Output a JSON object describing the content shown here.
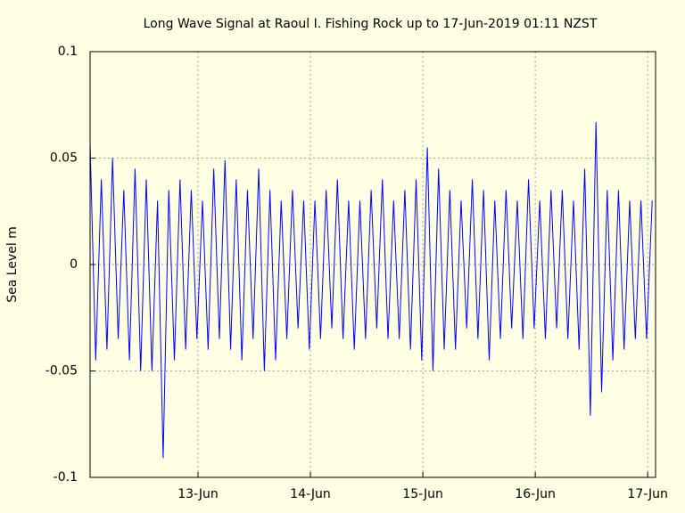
{
  "chart_data": {
    "type": "line",
    "title": "Long Wave Signal at Raoul I. Fishing Rock up to 17-Jun-2019 01:11 NZST",
    "ylabel": "Sea Level m",
    "xlim": [
      12.04,
      17.07
    ],
    "ylim": [
      -0.1,
      0.1
    ],
    "xticks": [
      {
        "value": 13,
        "label": "13-Jun"
      },
      {
        "value": 14,
        "label": "14-Jun"
      },
      {
        "value": 15,
        "label": "15-Jun"
      },
      {
        "value": 16,
        "label": "16-Jun"
      },
      {
        "value": 17,
        "label": "17-Jun"
      }
    ],
    "yticks": [
      -0.1,
      -0.05,
      0,
      0.05,
      0.1
    ],
    "grid": true,
    "series": [
      {
        "color": "#0000ff",
        "x": [
          12.04,
          12.09,
          12.14,
          12.19,
          12.24,
          12.29,
          12.34,
          12.39,
          12.44,
          12.49,
          12.54,
          12.59,
          12.64,
          12.69,
          12.74,
          12.79,
          12.84,
          12.89,
          12.94,
          12.99,
          13.04,
          13.09,
          13.14,
          13.19,
          13.24,
          13.29,
          13.34,
          13.39,
          13.44,
          13.49,
          13.54,
          13.59,
          13.64,
          13.69,
          13.74,
          13.79,
          13.84,
          13.89,
          13.94,
          13.99,
          14.04,
          14.09,
          14.14,
          14.19,
          14.24,
          14.29,
          14.34,
          14.39,
          14.44,
          14.49,
          14.54,
          14.59,
          14.64,
          14.69,
          14.74,
          14.79,
          14.84,
          14.89,
          14.94,
          14.99,
          15.04,
          15.09,
          15.14,
          15.19,
          15.24,
          15.29,
          15.34,
          15.39,
          15.44,
          15.49,
          15.54,
          15.59,
          15.64,
          15.69,
          15.74,
          15.79,
          15.84,
          15.89,
          15.94,
          15.99,
          16.04,
          16.09,
          16.14,
          16.19,
          16.24,
          16.29,
          16.34,
          16.39,
          16.44,
          16.49,
          16.54,
          16.59,
          16.64,
          16.69,
          16.74,
          16.79,
          16.84,
          16.89,
          16.94,
          16.99,
          17.04
        ],
        "values": [
          0.057,
          -0.045,
          0.04,
          -0.04,
          0.05,
          -0.035,
          0.035,
          -0.045,
          0.045,
          -0.05,
          0.04,
          -0.05,
          0.03,
          -0.091,
          0.035,
          -0.045,
          0.04,
          -0.04,
          0.035,
          -0.035,
          0.03,
          -0.04,
          0.045,
          -0.035,
          0.049,
          -0.04,
          0.04,
          -0.045,
          0.035,
          -0.035,
          0.045,
          -0.05,
          0.035,
          -0.045,
          0.03,
          -0.035,
          0.035,
          -0.03,
          0.03,
          -0.04,
          0.03,
          -0.035,
          0.035,
          -0.03,
          0.04,
          -0.035,
          0.03,
          -0.04,
          0.03,
          -0.035,
          0.035,
          -0.03,
          0.04,
          -0.035,
          0.03,
          -0.035,
          0.035,
          -0.04,
          0.04,
          -0.045,
          0.055,
          -0.05,
          0.045,
          -0.04,
          0.035,
          -0.04,
          0.03,
          -0.03,
          0.04,
          -0.035,
          0.035,
          -0.045,
          0.03,
          -0.035,
          0.035,
          -0.03,
          0.03,
          -0.035,
          0.04,
          -0.03,
          0.03,
          -0.035,
          0.035,
          -0.03,
          0.035,
          -0.035,
          0.03,
          -0.04,
          0.045,
          -0.071,
          0.067,
          -0.06,
          0.035,
          -0.045,
          0.035,
          -0.04,
          0.03,
          -0.035,
          0.03,
          -0.035,
          0.03
        ]
      }
    ]
  }
}
